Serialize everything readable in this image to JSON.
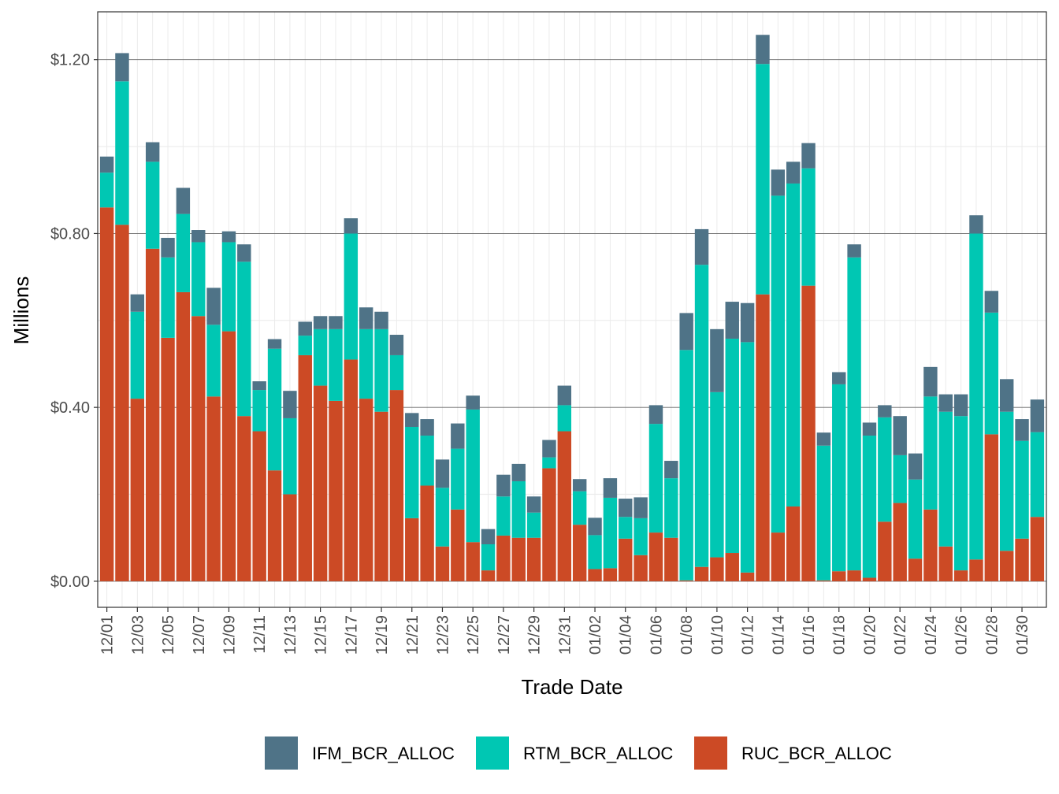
{
  "chart_data": {
    "type": "bar",
    "stacked": true,
    "xlabel": "Trade Date",
    "ylabel": "Millions",
    "ylim": [
      -0.06,
      1.31
    ],
    "y_ticks": [
      0.0,
      0.4,
      0.8,
      1.2
    ],
    "y_tick_labels": [
      "$0.00",
      "$0.40",
      "$0.80",
      "$1.20"
    ],
    "grid": true,
    "legend_position": "bottom",
    "categories": [
      "12/01",
      "12/02",
      "12/03",
      "12/04",
      "12/05",
      "12/06",
      "12/07",
      "12/08",
      "12/09",
      "12/10",
      "12/11",
      "12/12",
      "12/13",
      "12/14",
      "12/15",
      "12/16",
      "12/17",
      "12/18",
      "12/19",
      "12/20",
      "12/21",
      "12/22",
      "12/23",
      "12/24",
      "12/25",
      "12/26",
      "12/27",
      "12/28",
      "12/29",
      "12/30",
      "12/31",
      "01/01",
      "01/02",
      "01/03",
      "01/04",
      "01/05",
      "01/06",
      "01/07",
      "01/08",
      "01/09",
      "01/10",
      "01/11",
      "01/12",
      "01/13",
      "01/14",
      "01/15",
      "01/16",
      "01/17",
      "01/18",
      "01/19",
      "01/20",
      "01/21",
      "01/22",
      "01/23",
      "01/24",
      "01/25",
      "01/26",
      "01/27",
      "01/28",
      "01/29",
      "01/30",
      "01/31"
    ],
    "x_tick_labels": [
      "12/01",
      "12/03",
      "12/05",
      "12/07",
      "12/09",
      "12/11",
      "12/13",
      "12/15",
      "12/17",
      "12/19",
      "12/21",
      "12/23",
      "12/25",
      "12/27",
      "12/29",
      "12/31",
      "01/02",
      "01/04",
      "01/06",
      "01/08",
      "01/10",
      "01/12",
      "01/14",
      "01/16",
      "01/18",
      "01/20",
      "01/22",
      "01/24",
      "01/26",
      "01/28",
      "01/30"
    ],
    "series": [
      {
        "name": "RUC_BCR_ALLOC",
        "color": "#CC4A25",
        "values": [
          0.86,
          0.82,
          0.42,
          0.765,
          0.56,
          0.665,
          0.61,
          0.425,
          0.575,
          0.38,
          0.345,
          0.255,
          0.2,
          0.52,
          0.45,
          0.415,
          0.51,
          0.42,
          0.39,
          0.44,
          0.145,
          0.22,
          0.08,
          0.165,
          0.09,
          0.025,
          0.105,
          0.1,
          0.1,
          0.26,
          0.345,
          0.13,
          0.028,
          0.03,
          0.098,
          0.06,
          0.112,
          0.1,
          0.002,
          0.033,
          0.055,
          0.065,
          0.02,
          0.66,
          0.112,
          0.172,
          0.68,
          0.002,
          0.023,
          0.025,
          0.008,
          0.137,
          0.18,
          0.052,
          0.165,
          0.08,
          0.025,
          0.05,
          0.338,
          0.07,
          0.098,
          0.148
        ]
      },
      {
        "name": "RTM_BCR_ALLOC",
        "color": "#00C7B3",
        "values": [
          0.08,
          0.33,
          0.2,
          0.2,
          0.185,
          0.18,
          0.17,
          0.165,
          0.205,
          0.355,
          0.095,
          0.28,
          0.175,
          0.045,
          0.13,
          0.165,
          0.29,
          0.16,
          0.19,
          0.08,
          0.21,
          0.115,
          0.135,
          0.14,
          0.305,
          0.06,
          0.09,
          0.13,
          0.058,
          0.025,
          0.06,
          0.077,
          0.078,
          0.162,
          0.05,
          0.085,
          0.25,
          0.137,
          0.53,
          0.695,
          0.38,
          0.493,
          0.53,
          0.53,
          0.775,
          0.743,
          0.27,
          0.31,
          0.43,
          0.72,
          0.327,
          0.24,
          0.11,
          0.182,
          0.26,
          0.31,
          0.355,
          0.75,
          0.28,
          0.32,
          0.225,
          0.195
        ]
      },
      {
        "name": "IFM_BCR_ALLOC",
        "color": "#4F7387",
        "values": [
          0.037,
          0.065,
          0.04,
          0.045,
          0.045,
          0.06,
          0.028,
          0.085,
          0.025,
          0.04,
          0.02,
          0.022,
          0.063,
          0.032,
          0.03,
          0.03,
          0.035,
          0.05,
          0.04,
          0.047,
          0.032,
          0.038,
          0.065,
          0.058,
          0.032,
          0.035,
          0.05,
          0.04,
          0.037,
          0.04,
          0.045,
          0.028,
          0.04,
          0.045,
          0.042,
          0.048,
          0.043,
          0.04,
          0.085,
          0.082,
          0.145,
          0.085,
          0.09,
          0.067,
          0.06,
          0.05,
          0.058,
          0.03,
          0.028,
          0.03,
          0.03,
          0.028,
          0.09,
          0.06,
          0.068,
          0.04,
          0.05,
          0.042,
          0.05,
          0.075,
          0.05,
          0.075
        ]
      }
    ],
    "legend_order": [
      "IFM_BCR_ALLOC",
      "RTM_BCR_ALLOC",
      "RUC_BCR_ALLOC"
    ]
  }
}
